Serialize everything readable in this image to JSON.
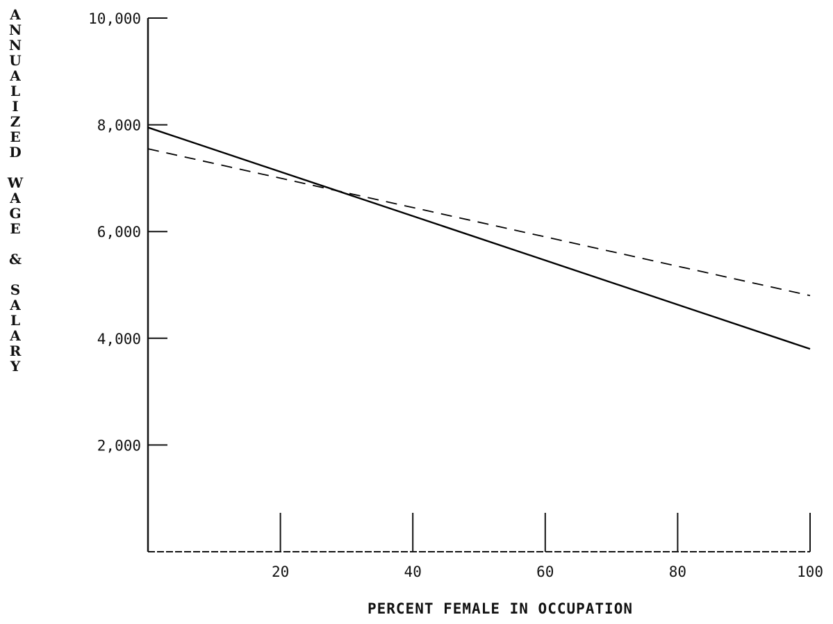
{
  "chart_data": {
    "type": "line",
    "title": "",
    "xlabel": "PERCENT FEMALE IN OCCUPATION",
    "ylabel": "ANNUALIZED WAGE & SALARY",
    "xlim": [
      0,
      100
    ],
    "ylim": [
      0,
      10000
    ],
    "x_ticks": [
      20,
      40,
      60,
      80,
      100
    ],
    "x_tick_labels": [
      "20",
      "40",
      "60",
      "80",
      "100"
    ],
    "y_ticks": [
      2000,
      4000,
      6000,
      8000,
      10000
    ],
    "y_tick_labels": [
      "2,000",
      "4,000",
      "6,000",
      "8,000",
      "10,000"
    ],
    "grid": false,
    "legend": "none",
    "series": [
      {
        "style": "solid",
        "color": "#000000",
        "x": [
          0,
          100
        ],
        "y": [
          7950,
          3800
        ]
      },
      {
        "style": "dashed",
        "color": "#000000",
        "x": [
          0,
          100
        ],
        "y": [
          7550,
          4800
        ]
      }
    ]
  }
}
